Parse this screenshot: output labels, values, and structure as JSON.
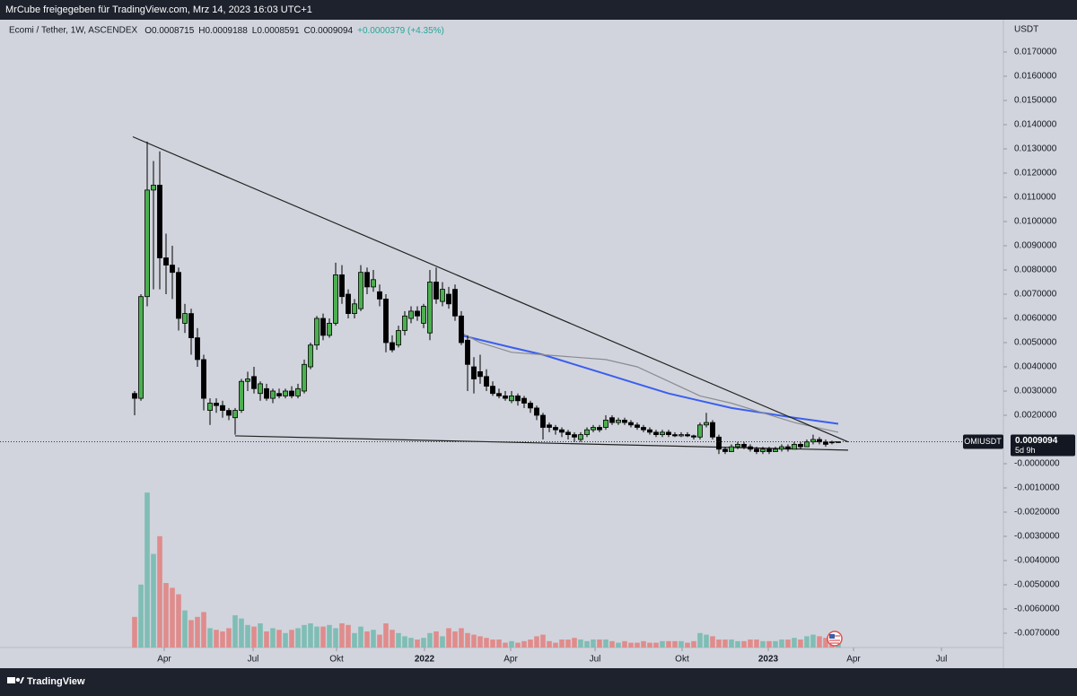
{
  "header": {
    "text": "MrCube freigegeben für TradingView.com, Mrz 14, 2023 16:03 UTC+1"
  },
  "footer": {
    "brand": "TradingView"
  },
  "chart_data": {
    "type": "candlestick",
    "title": "Ecomi / Tether, 1W, ASCENDEX",
    "legend_values": [
      "O0.0008715",
      "H0.0009188",
      "L0.0008591",
      "C0.0009094",
      "+0.0000379 (+4.35%)"
    ],
    "y_unit": "USDT",
    "symbol": "OMIUSDT",
    "last_price_label": "0.0009094",
    "countdown": "5d 9h",
    "last_price": 0.0009094,
    "up_color": "#4caf50",
    "down_color": "#000000",
    "volume_up_color": "#7fbdb5",
    "volume_down_color": "#e08c8c",
    "grid": false,
    "categories": [
      null,
      null,
      null,
      null,
      null,
      null,
      null,
      null,
      null,
      null,
      null,
      null,
      null,
      null,
      null,
      null,
      null,
      null,
      null,
      null,
      null,
      null,
      null,
      null,
      null,
      null,
      null,
      null,
      null,
      null,
      null,
      null,
      null,
      null,
      null,
      null,
      null,
      null,
      null,
      null,
      null,
      null,
      null,
      null,
      null,
      null,
      null,
      null,
      null,
      null,
      null,
      null,
      null,
      null,
      null,
      null,
      null,
      null,
      null,
      null,
      null,
      null,
      null,
      null,
      null,
      null,
      null,
      null,
      null,
      null,
      null,
      null,
      null,
      null,
      null,
      null,
      null,
      null,
      null,
      null,
      null,
      null,
      null,
      null,
      null,
      null,
      null,
      null,
      null,
      null,
      null,
      null,
      null,
      null,
      null,
      null,
      null,
      null,
      null,
      null,
      null,
      null,
      null,
      null,
      null,
      null,
      null,
      null,
      null,
      null,
      null,
      null,
      null
    ],
    "open": [
      0.0029,
      0.0027,
      0.0069,
      0.0113,
      0.0115,
      0.0085,
      0.0082,
      0.0079,
      0.0058,
      0.0062,
      0.0052,
      0.0043,
      0.0022,
      0.0025,
      0.0024,
      0.0022,
      0.0019,
      0.0022,
      0.0034,
      0.0036,
      0.0029,
      0.0031,
      0.0027,
      0.0029,
      0.0028,
      0.003,
      0.0028,
      0.003,
      0.004,
      0.0049,
      0.006,
      0.0053,
      0.0058,
      0.0078,
      0.007,
      0.0062,
      0.0064,
      0.0079,
      0.0073,
      0.0071,
      0.0068,
      0.005,
      0.0049,
      0.0055,
      0.006,
      0.0063,
      0.0058,
      0.0054,
      0.0075,
      0.0067,
      0.007,
      0.0072,
      0.0061,
      0.0051,
      0.004,
      0.0038,
      0.0036,
      0.0032,
      0.0029,
      0.0028,
      0.0026,
      0.0028,
      0.0027,
      0.0025,
      0.0023,
      0.002,
      0.0016,
      0.0015,
      0.0014,
      0.0013,
      0.0012,
      0.001,
      0.0012,
      0.0014,
      0.0015,
      0.0015,
      0.0019,
      0.0017,
      0.0018,
      0.0017,
      0.0016,
      0.0015,
      0.0014,
      0.0013,
      0.0012,
      0.0013,
      0.0012,
      0.00115,
      0.0012,
      0.00115,
      0.0011,
      0.0016,
      0.0017,
      0.0011,
      0.0006,
      0.0005,
      0.0007,
      0.0008,
      0.0007,
      0.0006,
      0.0005,
      0.0006,
      0.0005,
      0.0006,
      0.0007,
      0.0006,
      0.0008,
      0.0007,
      0.0009,
      0.001,
      0.0009,
      0.0009,
      0.0008715
    ],
    "high": [
      0.003,
      0.007,
      0.0133,
      0.0125,
      0.0129,
      0.0095,
      0.009,
      0.0081,
      0.0066,
      0.0064,
      0.0056,
      0.0045,
      0.0027,
      0.0027,
      0.0026,
      0.0023,
      0.0023,
      0.0035,
      0.0038,
      0.004,
      0.0034,
      0.0033,
      0.0031,
      0.0031,
      0.0031,
      0.0032,
      0.0033,
      0.0043,
      0.005,
      0.0061,
      0.0062,
      0.006,
      0.0083,
      0.0082,
      0.0072,
      0.0068,
      0.0082,
      0.0081,
      0.008,
      0.0074,
      0.007,
      0.0053,
      0.0057,
      0.0063,
      0.0065,
      0.0065,
      0.0066,
      0.008,
      0.0081,
      0.0075,
      0.0073,
      0.0074,
      0.0063,
      0.0053,
      0.0044,
      0.0045,
      0.0039,
      0.0034,
      0.0031,
      0.003,
      0.003,
      0.0029,
      0.0028,
      0.0026,
      0.0024,
      0.0021,
      0.0017,
      0.0016,
      0.0015,
      0.0014,
      0.0013,
      0.0013,
      0.0015,
      0.0016,
      0.0016,
      0.002,
      0.002,
      0.0019,
      0.0019,
      0.0018,
      0.0017,
      0.0016,
      0.0015,
      0.0014,
      0.0014,
      0.0014,
      0.0013,
      0.0013,
      0.0013,
      0.0012,
      0.0017,
      0.0021,
      0.0018,
      0.0012,
      0.0007,
      0.0008,
      0.0009,
      0.0009,
      0.0008,
      0.0007,
      0.0007,
      0.0007,
      0.0007,
      0.0008,
      0.0008,
      0.0009,
      0.0009,
      0.001,
      0.0012,
      0.0011,
      0.001,
      0.00095,
      0.0009188
    ],
    "low": [
      0.002,
      0.0026,
      0.0065,
      0.0072,
      0.0072,
      0.007,
      0.0068,
      0.0055,
      0.0054,
      0.0045,
      0.004,
      0.0022,
      0.0016,
      0.0021,
      0.0019,
      0.0018,
      0.0012,
      0.0021,
      0.003,
      0.0029,
      0.0026,
      0.0026,
      0.0025,
      0.0027,
      0.0027,
      0.0027,
      0.0027,
      0.0029,
      0.0039,
      0.0047,
      0.0051,
      0.0052,
      0.0057,
      0.0066,
      0.006,
      0.006,
      0.0063,
      0.007,
      0.0071,
      0.0065,
      0.0046,
      0.0046,
      0.0048,
      0.0053,
      0.0058,
      0.0059,
      0.0056,
      0.0051,
      0.0066,
      0.0065,
      0.0064,
      0.0059,
      0.0049,
      0.003,
      0.0029,
      0.0033,
      0.003,
      0.0028,
      0.0027,
      0.0026,
      0.0025,
      0.0024,
      0.0023,
      0.0021,
      0.0018,
      0.001,
      0.0013,
      0.0012,
      0.0011,
      0.001,
      0.0009,
      0.0009,
      0.0011,
      0.0013,
      0.0013,
      0.0014,
      0.0016,
      0.0016,
      0.0016,
      0.0015,
      0.0014,
      0.0013,
      0.0012,
      0.0011,
      0.0011,
      0.0011,
      0.0011,
      0.0011,
      0.0011,
      0.001,
      0.001,
      0.0015,
      0.001,
      0.0004,
      0.0004,
      0.0005,
      0.0006,
      0.0006,
      0.0005,
      0.0004,
      0.0004,
      0.0004,
      0.0005,
      0.0005,
      0.0005,
      0.0006,
      0.0006,
      0.0007,
      0.0008,
      0.0008,
      0.0007,
      0.0008,
      0.0008591
    ],
    "close": [
      0.0027,
      0.0069,
      0.0113,
      0.0115,
      0.0085,
      0.0082,
      0.0079,
      0.006,
      0.0062,
      0.0052,
      0.0043,
      0.0027,
      0.0025,
      0.0024,
      0.0022,
      0.002,
      0.0022,
      0.0034,
      0.0035,
      0.0031,
      0.0033,
      0.0027,
      0.003,
      0.0028,
      0.003,
      0.0028,
      0.0031,
      0.0041,
      0.0049,
      0.006,
      0.0053,
      0.0058,
      0.0078,
      0.0069,
      0.0062,
      0.0066,
      0.0079,
      0.0073,
      0.0076,
      0.0068,
      0.005,
      0.0047,
      0.0055,
      0.0061,
      0.0063,
      0.0061,
      0.0065,
      0.0075,
      0.0068,
      0.0072,
      0.0066,
      0.0061,
      0.005,
      0.0041,
      0.0035,
      0.0036,
      0.0032,
      0.0029,
      0.0028,
      0.0027,
      0.0028,
      0.0026,
      0.0025,
      0.0023,
      0.002,
      0.0015,
      0.0015,
      0.0014,
      0.0013,
      0.0012,
      0.0011,
      0.0012,
      0.0014,
      0.0015,
      0.0014,
      0.0018,
      0.0017,
      0.0018,
      0.0017,
      0.0016,
      0.0015,
      0.0014,
      0.0013,
      0.0012,
      0.0013,
      0.0012,
      0.00115,
      0.0012,
      0.00115,
      0.0011,
      0.0016,
      0.0017,
      0.0011,
      0.0006,
      0.0005,
      0.0007,
      0.0008,
      0.0007,
      0.0006,
      0.0005,
      0.0006,
      0.0005,
      0.0006,
      0.0007,
      0.0006,
      0.0008,
      0.0007,
      0.0009,
      0.001,
      0.0009,
      0.0008,
      0.0008715,
      0.0009094
    ],
    "volume": [
      19,
      39,
      96,
      58,
      69,
      40,
      37,
      33,
      23,
      17,
      19,
      22,
      12,
      11,
      10,
      12,
      20,
      18,
      14,
      13,
      15,
      10,
      12,
      11,
      9,
      11,
      12,
      14,
      15,
      13,
      13,
      14,
      12,
      15,
      14,
      9,
      13,
      10,
      11,
      8,
      15,
      11,
      9,
      7,
      6,
      5,
      6,
      9,
      10,
      7,
      12,
      10,
      12,
      9,
      8,
      7,
      6,
      5,
      5,
      3,
      4,
      3,
      4,
      5,
      7,
      8,
      4,
      3,
      5,
      5,
      6,
      5,
      4,
      5,
      5,
      5,
      4,
      3,
      4,
      3,
      3,
      4,
      3,
      3,
      4,
      4,
      4,
      4,
      3,
      4,
      9,
      8,
      7,
      5,
      5,
      5,
      4,
      4,
      5,
      5,
      4,
      4,
      4,
      5,
      5,
      6,
      5,
      7,
      8,
      7,
      6,
      6,
      5
    ],
    "lines": [
      {
        "color": "#3a5ef0",
        "width": 2,
        "x": [
          52,
          60,
          65,
          70,
          75,
          80,
          85,
          90,
          95,
          100,
          105,
          112
        ],
        "values": [
          0.0053,
          0.0048,
          0.0045,
          0.0041,
          0.0037,
          0.0033,
          0.0029,
          0.0026,
          0.0023,
          0.0021,
          0.0019,
          0.00165
        ]
      },
      {
        "color": "#8a8c92",
        "width": 1.2,
        "x": [
          52,
          55,
          60,
          65,
          70,
          75,
          80,
          85,
          90,
          95,
          100,
          105,
          112
        ],
        "values": [
          0.0054,
          0.005,
          0.0046,
          0.0045,
          0.0044,
          0.0043,
          0.004,
          0.0034,
          0.0028,
          0.0025,
          0.0021,
          0.0017,
          0.0013
        ]
      },
      {
        "color": "#222222",
        "width": 1.2,
        "x": [
          -0.29,
          113.57
        ],
        "values": [
          0.0135,
          0.0009
        ]
      },
      {
        "color": "#222222",
        "width": 1.2,
        "x": [
          16,
          113.57
        ],
        "values": [
          0.00115,
          0.00056
        ]
      }
    ],
    "xlim": [
      -21.43,
      138.29
    ],
    "xticks": [
      {
        "value": 4.71,
        "label": "Apr"
      },
      {
        "value": 18.86,
        "label": "Jul"
      },
      {
        "value": 32.14,
        "label": "Okt"
      },
      {
        "value": 46.14,
        "label": "2022"
      },
      {
        "value": 59.86,
        "label": "Apr"
      },
      {
        "value": 73.29,
        "label": "Jul"
      },
      {
        "value": 87.14,
        "label": "Okt"
      },
      {
        "value": 100.86,
        "label": "2023"
      },
      {
        "value": 114.43,
        "label": "Apr"
      },
      {
        "value": 128.43,
        "label": "Jul"
      }
    ],
    "ylim": [
      -0.008444,
      0.018333
    ],
    "yticks": [
      {
        "value": 0.017,
        "label": "0.0170000"
      },
      {
        "value": 0.016,
        "label": "0.0160000"
      },
      {
        "value": 0.015,
        "label": "0.0150000"
      },
      {
        "value": 0.014,
        "label": "0.0140000"
      },
      {
        "value": 0.013,
        "label": "0.0130000"
      },
      {
        "value": 0.012,
        "label": "0.0120000"
      },
      {
        "value": 0.011,
        "label": "0.0110000"
      },
      {
        "value": 0.01,
        "label": "0.0100000"
      },
      {
        "value": 0.009,
        "label": "0.0090000"
      },
      {
        "value": 0.008,
        "label": "0.0080000"
      },
      {
        "value": 0.007,
        "label": "0.0070000"
      },
      {
        "value": 0.006,
        "label": "0.0060000"
      },
      {
        "value": 0.005,
        "label": "0.0050000"
      },
      {
        "value": 0.004,
        "label": "0.0040000"
      },
      {
        "value": 0.003,
        "label": "0.0030000"
      },
      {
        "value": 0.002,
        "label": "0.0020000"
      },
      {
        "value": 0,
        "label": "-0.0000000"
      },
      {
        "value": -0.001,
        "label": "-0.0010000"
      },
      {
        "value": -0.002,
        "label": "-0.0020000"
      },
      {
        "value": -0.003,
        "label": "-0.0030000"
      },
      {
        "value": -0.004,
        "label": "-0.0040000"
      },
      {
        "value": -0.005,
        "label": "-0.0050000"
      },
      {
        "value": -0.006,
        "label": "-0.0060000"
      },
      {
        "value": -0.007,
        "label": "-0.0070000"
      }
    ]
  }
}
